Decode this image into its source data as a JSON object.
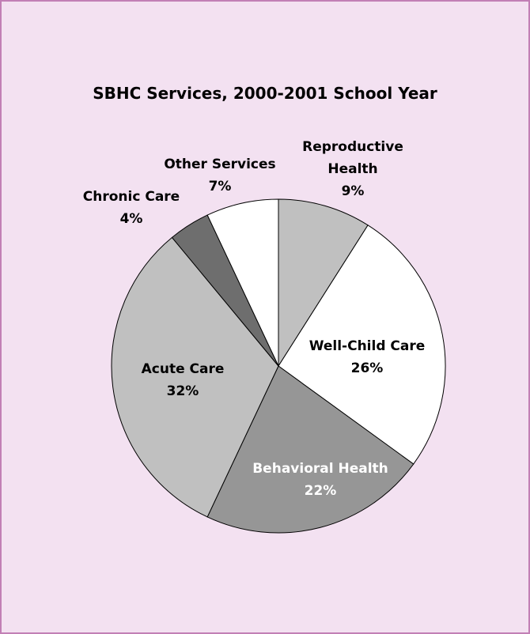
{
  "chart_data": {
    "type": "pie",
    "title": "SBHC Services, 2000-2001 School Year",
    "categories": [
      "Reproductive Health",
      "Well-Child Care",
      "Behavioral Health",
      "Acute Care",
      "Chronic Care",
      "Other Services"
    ],
    "values": [
      9,
      26,
      22,
      32,
      4,
      7
    ],
    "value_labels": [
      "9%",
      "26%",
      "22%",
      "32%",
      "4%",
      "7%"
    ],
    "colors": [
      "#c0c0c0",
      "#ffffff",
      "#969696",
      "#c0c0c0",
      "#6e6e6e",
      "#ffffff"
    ]
  }
}
